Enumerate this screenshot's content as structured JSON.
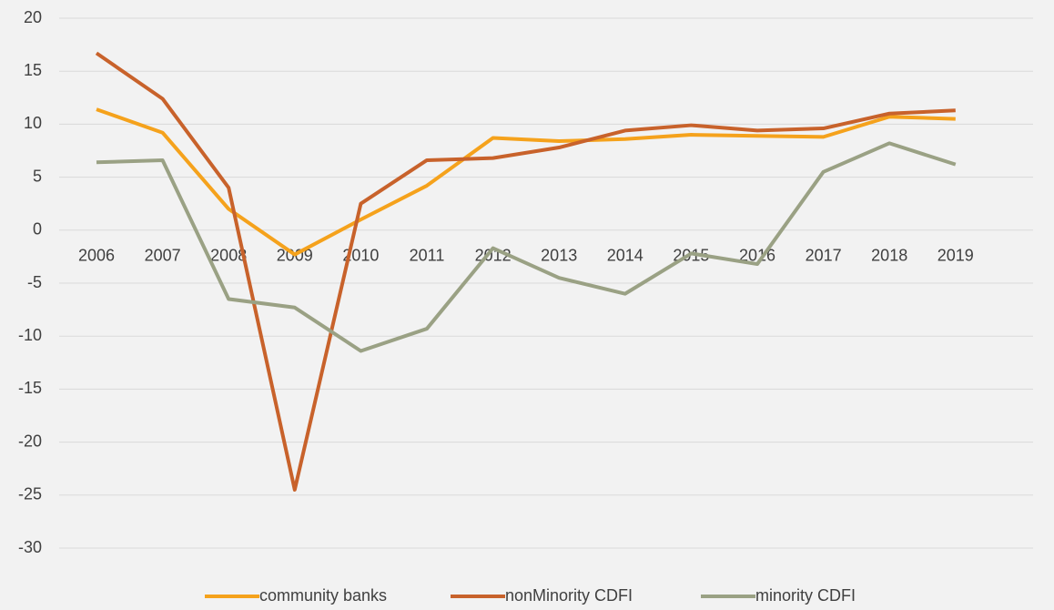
{
  "chart_data": {
    "type": "line",
    "categories": [
      "2006",
      "2007",
      "2008",
      "2009",
      "2010",
      "2011",
      "2012",
      "2013",
      "2014",
      "2015",
      "2016",
      "2017",
      "2018",
      "2019"
    ],
    "series": [
      {
        "name": "community banks",
        "color": "#f5a21c",
        "values": [
          11.4,
          9.2,
          2.0,
          -2.3,
          1.0,
          4.2,
          8.7,
          8.4,
          8.6,
          9.0,
          8.9,
          8.8,
          10.7,
          10.5
        ]
      },
      {
        "name": "nonMinority CDFI",
        "color": "#c8622b",
        "values": [
          16.7,
          12.4,
          4.0,
          -24.5,
          2.5,
          6.6,
          6.8,
          7.8,
          9.4,
          9.9,
          9.4,
          9.6,
          11.0,
          11.3
        ]
      },
      {
        "name": "minority CDFI",
        "color": "#9aa184",
        "values": [
          6.4,
          6.6,
          -6.5,
          -7.3,
          -11.4,
          -9.3,
          -1.7,
          -4.5,
          -6.0,
          -2.2,
          -3.2,
          5.5,
          8.2,
          6.2
        ]
      }
    ],
    "ylim": [
      -30,
      20
    ],
    "yticks": [
      -30,
      -25,
      -20,
      -15,
      -10,
      -5,
      0,
      5,
      10,
      15,
      20
    ],
    "grid": true,
    "legend": "bottom"
  }
}
